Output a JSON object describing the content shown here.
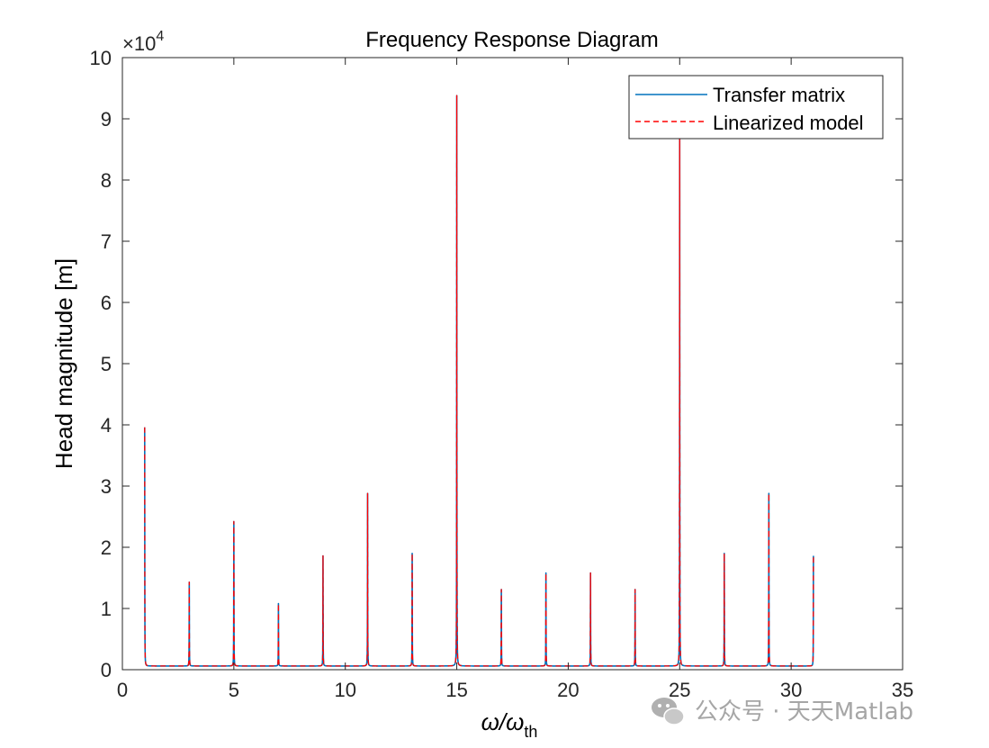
{
  "chart_data": {
    "type": "line",
    "title": "Frequency Response Diagram",
    "xlabel_main": "ω/ω",
    "xlabel_sub": "th",
    "ylabel": "Head magnitude [m]",
    "y_multiplier_base": "×10",
    "y_multiplier_exp": "4",
    "xlim": [
      0,
      35
    ],
    "ylim": [
      0,
      10
    ],
    "xticks": [
      "0",
      "5",
      "10",
      "15",
      "20",
      "25",
      "30",
      "35"
    ],
    "yticks": [
      "0",
      "1",
      "2",
      "3",
      "4",
      "5",
      "6",
      "7",
      "8",
      "9",
      "10"
    ],
    "grid": false,
    "legend_position": "top-right",
    "peaks": [
      {
        "x": 1,
        "y": 3.9
      },
      {
        "x": 3,
        "y": 1.37
      },
      {
        "x": 5,
        "y": 2.36
      },
      {
        "x": 7,
        "y": 1.02
      },
      {
        "x": 9,
        "y": 1.8
      },
      {
        "x": 11,
        "y": 2.82
      },
      {
        "x": 13,
        "y": 1.84
      },
      {
        "x": 15,
        "y": 9.32
      },
      {
        "x": 17,
        "y": 1.25
      },
      {
        "x": 19,
        "y": 1.52
      },
      {
        "x": 21,
        "y": 1.52
      },
      {
        "x": 23,
        "y": 1.25
      },
      {
        "x": 25,
        "y": 8.7
      },
      {
        "x": 27,
        "y": 1.84
      },
      {
        "x": 29,
        "y": 2.82
      },
      {
        "x": 31,
        "y": 1.8
      }
    ],
    "x_range": [
      1,
      31
    ],
    "series": [
      {
        "name": "Transfer matrix",
        "color": "#0072BD",
        "dash": "solid"
      },
      {
        "name": "Linearized model",
        "color": "#FF0000",
        "dash": "dashed"
      }
    ]
  },
  "watermark": {
    "text": "公众号 · 天天Matlab",
    "icon": "wechat-icon"
  }
}
